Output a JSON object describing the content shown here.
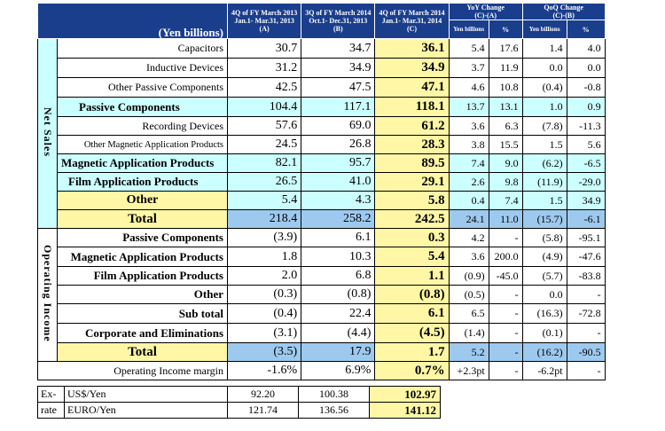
{
  "header": {
    "unit": "(Yen billions)",
    "col_a": {
      "line1": "4Q of FY March 2013",
      "line2": "Jan.1- Mar.31, 2013",
      "line3": "(A)"
    },
    "col_b": {
      "line1": "3Q of FY March 2014",
      "line2": "Oct.1- Dec.31, 2013",
      "line3": "(B)"
    },
    "col_c": {
      "line1": "4Q of FY March 2014",
      "line2": "Jan.1- Mar.31, 2014",
      "line3": "(C)"
    },
    "yoy": {
      "line1": "YoY Change",
      "line2": "(C)-(A)",
      "yen": "Yen billions",
      "pct": "%"
    },
    "qoq": {
      "line1": "QoQ Change",
      "line2": "(C)-(B)",
      "yen": "Yen billions",
      "pct": "%"
    }
  },
  "sections": {
    "net_sales": "Net Sales",
    "operating_income": "Operating Income"
  },
  "net_sales": [
    {
      "label": "Capacitors",
      "a": "30.7",
      "b": "34.7",
      "c": "36.1",
      "yoy": "5.4",
      "yoy_pct": "17.6",
      "qoq": "1.4",
      "qoq_pct": "4.0"
    },
    {
      "label": "Inductive Devices",
      "a": "31.2",
      "b": "34.9",
      "c": "34.9",
      "yoy": "3.7",
      "yoy_pct": "11.9",
      "qoq": "0.0",
      "qoq_pct": "0.0"
    },
    {
      "label": "Other Passive Components",
      "a": "42.5",
      "b": "47.5",
      "c": "47.1",
      "yoy": "4.6",
      "yoy_pct": "10.8",
      "qoq": "(0.4)",
      "qoq_pct": "-0.8"
    },
    {
      "label": "Passive Components",
      "a": "104.4",
      "b": "117.1",
      "c": "118.1",
      "yoy": "13.7",
      "yoy_pct": "13.1",
      "qoq": "1.0",
      "qoq_pct": "0.9"
    },
    {
      "label": "Recording Devices",
      "a": "57.6",
      "b": "69.0",
      "c": "61.2",
      "yoy": "3.6",
      "yoy_pct": "6.3",
      "qoq": "(7.8)",
      "qoq_pct": "-11.3"
    },
    {
      "label": "Other Magnetic Application Products",
      "a": "24.5",
      "b": "26.8",
      "c": "28.3",
      "yoy": "3.8",
      "yoy_pct": "15.5",
      "qoq": "1.5",
      "qoq_pct": "5.6"
    },
    {
      "label": "Magnetic Application Products",
      "a": "82.1",
      "b": "95.7",
      "c": "89.5",
      "yoy": "7.4",
      "yoy_pct": "9.0",
      "qoq": "(6.2)",
      "qoq_pct": "-6.5"
    },
    {
      "label": "Film Application Products",
      "a": "26.5",
      "b": "41.0",
      "c": "29.1",
      "yoy": "2.6",
      "yoy_pct": "9.8",
      "qoq": "(11.9)",
      "qoq_pct": "-29.0"
    },
    {
      "label": "Other",
      "a": "5.4",
      "b": "4.3",
      "c": "5.8",
      "yoy": "0.4",
      "yoy_pct": "7.4",
      "qoq": "1.5",
      "qoq_pct": "34.9"
    },
    {
      "label": "Total",
      "a": "218.4",
      "b": "258.2",
      "c": "242.5",
      "yoy": "24.1",
      "yoy_pct": "11.0",
      "qoq": "(15.7)",
      "qoq_pct": "-6.1"
    }
  ],
  "operating_income": [
    {
      "label": "Passive Components",
      "a": "(3.9)",
      "b": "6.1",
      "c": "0.3",
      "yoy": "4.2",
      "yoy_pct": "-",
      "qoq": "(5.8)",
      "qoq_pct": "-95.1"
    },
    {
      "label": "Magnetic Application Products",
      "a": "1.8",
      "b": "10.3",
      "c": "5.4",
      "yoy": "3.6",
      "yoy_pct": "200.0",
      "qoq": "(4.9)",
      "qoq_pct": "-47.6"
    },
    {
      "label": "Film Application Products",
      "a": "2.0",
      "b": "6.8",
      "c": "1.1",
      "yoy": "(0.9)",
      "yoy_pct": "-45.0",
      "qoq": "(5.7)",
      "qoq_pct": "-83.8"
    },
    {
      "label": "Other",
      "a": "(0.3)",
      "b": "(0.8)",
      "c": "(0.8)",
      "yoy": "(0.5)",
      "yoy_pct": "-",
      "qoq": "0.0",
      "qoq_pct": "-"
    },
    {
      "label": "Sub total",
      "a": "(0.4)",
      "b": "22.4",
      "c": "6.1",
      "yoy": "6.5",
      "yoy_pct": "-",
      "qoq": "(16.3)",
      "qoq_pct": "-72.8"
    },
    {
      "label": "Corporate and Eliminations",
      "a": "(3.1)",
      "b": "(4.4)",
      "c": "(4.5)",
      "yoy": "(1.4)",
      "yoy_pct": "-",
      "qoq": "(0.1)",
      "qoq_pct": "-"
    },
    {
      "label": "Total",
      "a": "(3.5)",
      "b": "17.9",
      "c": "1.7",
      "yoy": "5.2",
      "yoy_pct": "-",
      "qoq": "(16.2)",
      "qoq_pct": "-90.5"
    }
  ],
  "margin": {
    "label": "Operating Income margin",
    "a": "-1.6%",
    "b": "6.9%",
    "c": "0.7%",
    "yoy": "+2.3pt",
    "yoy_pct": "-",
    "qoq": "-6.2pt",
    "qoq_pct": "-"
  },
  "fx": {
    "label_top": "Ex-",
    "label_bottom": "rate",
    "usd": {
      "label": "US$/Yen",
      "a": "92.20",
      "b": "100.38",
      "c": "102.97"
    },
    "euro": {
      "label": "EURO/Yen",
      "a": "121.74",
      "b": "136.56",
      "c": "141.12"
    }
  }
}
